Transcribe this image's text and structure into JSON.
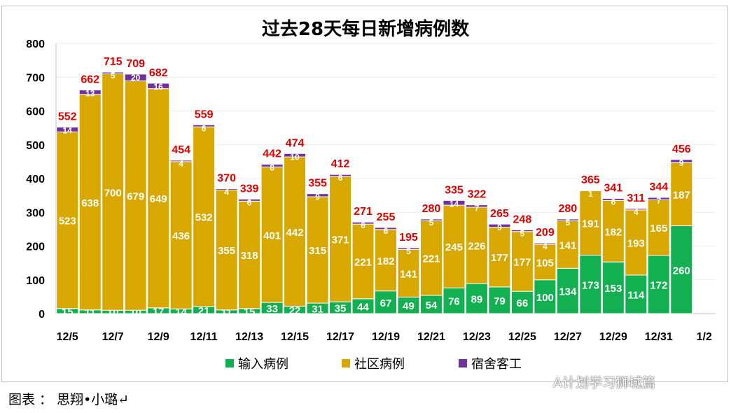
{
  "chart_data": {
    "type": "bar",
    "stacked": true,
    "title": "过去28天每日新增病例数",
    "categories": [
      "12/5",
      "12/6",
      "12/7",
      "12/8",
      "12/9",
      "12/10",
      "12/11",
      "12/12",
      "12/13",
      "12/14",
      "12/15",
      "12/16",
      "12/17",
      "12/18",
      "12/19",
      "12/20",
      "12/21",
      "12/22",
      "12/23",
      "12/24",
      "12/25",
      "12/26",
      "12/27",
      "12/28",
      "12/29",
      "12/30",
      "12/31",
      "1/1"
    ],
    "x_tick_labels": [
      "12/5",
      "12/7",
      "12/9",
      "12/11",
      "12/13",
      "12/15",
      "12/17",
      "12/19",
      "12/21",
      "12/23",
      "12/25",
      "12/27",
      "12/29",
      "12/31",
      "1/2"
    ],
    "series": [
      {
        "name": "输入病例",
        "color": "#12b050",
        "values": [
          15,
          11,
          10,
          10,
          17,
          14,
          21,
          11,
          15,
          33,
          22,
          31,
          35,
          44,
          67,
          49,
          54,
          76,
          89,
          79,
          66,
          100,
          134,
          173,
          153,
          114,
          172,
          260
        ]
      },
      {
        "name": "社区病例",
        "color": "#d9a800",
        "values": [
          523,
          638,
          700,
          679,
          649,
          436,
          532,
          355,
          318,
          401,
          442,
          315,
          371,
          221,
          182,
          141,
          221,
          245,
          226,
          177,
          177,
          105,
          141,
          191,
          182,
          193,
          165,
          187
        ]
      },
      {
        "name": "宿舍客工",
        "color": "#7030a0",
        "values": [
          14,
          13,
          5,
          20,
          16,
          4,
          6,
          4,
          6,
          8,
          10,
          9,
          6,
          6,
          6,
          5,
          5,
          14,
          7,
          9,
          5,
          4,
          5,
          1,
          6,
          4,
          7,
          9
        ]
      }
    ],
    "totals": [
      552,
      662,
      715,
      709,
      682,
      454,
      559,
      370,
      339,
      442,
      474,
      355,
      412,
      271,
      255,
      195,
      280,
      335,
      322,
      265,
      248,
      209,
      280,
      365,
      341,
      311,
      344,
      456
    ],
    "total_label_color": "#e00000",
    "ylim": [
      0,
      800
    ],
    "y_ticks": [
      0,
      100,
      200,
      300,
      400,
      500,
      600,
      700,
      800
    ],
    "grid": true,
    "legend": "bottom"
  },
  "caption": "图表 ： 思翔•小璐↵",
  "watermark": "A计划学习狮城篇"
}
